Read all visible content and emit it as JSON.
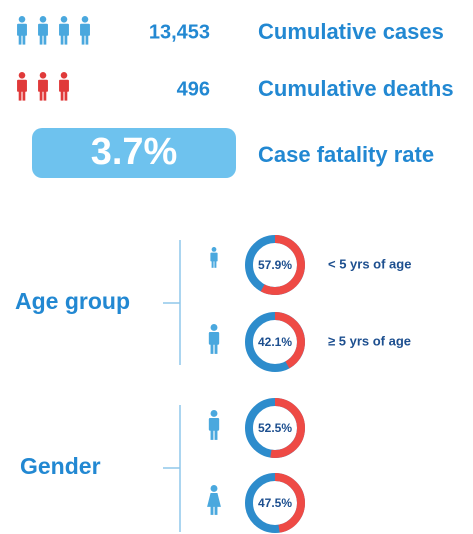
{
  "stats": [
    {
      "value": "13,453",
      "label": "Cumulative cases"
    },
    {
      "value": "496",
      "label": "Cumulative deaths"
    }
  ],
  "cfr": {
    "value": "3.7%",
    "label": "Case fatality rate"
  },
  "age_group": {
    "title": "Age group",
    "items": [
      {
        "percent": 57.9,
        "percent_label": "57.9%",
        "label": "< 5 yrs of age"
      },
      {
        "percent": 42.1,
        "percent_label": "42.1%",
        "label": "≥ 5 yrs of age"
      }
    ]
  },
  "gender": {
    "title": "Gender",
    "items": [
      {
        "percent": 52.5,
        "percent_label": "52.5%"
      },
      {
        "percent": 47.5,
        "percent_label": "47.5%"
      }
    ]
  }
}
